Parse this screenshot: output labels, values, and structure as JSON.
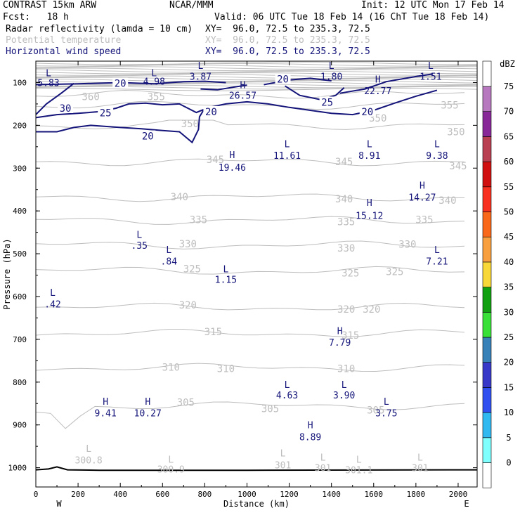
{
  "header": {
    "title": "CONTRAST 15km ARW",
    "center": "NCAR/MMM",
    "init": "Init: 12 UTC Mon 17 Feb 14",
    "fcst": "Fcst:   18 h",
    "valid": "Valid: 06 UTC Tue 18 Feb 14 (16 ChT Tue 18 Feb 14)",
    "field1": "Radar reflectivity (lamda = 10 cm)",
    "field1_xy": "XY=  96.0, 72.5 to 235.3, 72.5",
    "field2": "Potential temperature",
    "field2_xy": "XY=  96.0, 72.5 to 235.3, 72.5",
    "field3": "Horizontal wind speed",
    "field3_xy": "XY=  96.0, 72.5 to 235.3, 72.5"
  },
  "colors": {
    "wind": "#14147a",
    "theta": "#bdbdbd",
    "axis": "#000000"
  },
  "chart_data": {
    "type": "cross-section",
    "xlabel": "Distance (km)",
    "ylabel": "Pressure (hPa)",
    "xlim": [
      0,
      2090
    ],
    "ylim": [
      1045,
      50
    ],
    "xticks": [
      0,
      200,
      400,
      600,
      800,
      1000,
      1200,
      1400,
      1600,
      1800,
      2000
    ],
    "yticks": [
      100,
      200,
      300,
      400,
      500,
      600,
      700,
      800,
      900,
      1000
    ],
    "x_endpoints": {
      "left": "W",
      "right": "E"
    },
    "colorbar": {
      "label": "dBZ",
      "levels": [
        0,
        5,
        10,
        15,
        20,
        25,
        30,
        35,
        40,
        45,
        50,
        55,
        60,
        65,
        70,
        75
      ],
      "colors": [
        "#ffffff",
        "#80ffff",
        "#30b8f0",
        "#3050f0",
        "#3838c8",
        "#3880b8",
        "#38e038",
        "#10a010",
        "#f8d838",
        "#f8a040",
        "#f86818",
        "#f83020",
        "#d01010",
        "#b84050",
        "#882898",
        "#b878c0"
      ]
    },
    "theta_labels": [
      {
        "text": "360",
        "x": 260,
        "p": 133
      },
      {
        "text": "355",
        "x": 570,
        "p": 133
      },
      {
        "text": "355",
        "x": 1960,
        "p": 153
      },
      {
        "text": "350",
        "x": 730,
        "p": 196
      },
      {
        "text": "350",
        "x": 1620,
        "p": 183
      },
      {
        "text": "350",
        "x": 1990,
        "p": 215
      },
      {
        "text": "345",
        "x": 850,
        "p": 280
      },
      {
        "text": "345",
        "x": 1460,
        "p": 285
      },
      {
        "text": "345",
        "x": 2000,
        "p": 295
      },
      {
        "text": "340",
        "x": 680,
        "p": 367
      },
      {
        "text": "340",
        "x": 1460,
        "p": 372
      },
      {
        "text": "340",
        "x": 1950,
        "p": 375
      },
      {
        "text": "335",
        "x": 770,
        "p": 420
      },
      {
        "text": "335",
        "x": 1470,
        "p": 425
      },
      {
        "text": "335",
        "x": 1840,
        "p": 420
      },
      {
        "text": "330",
        "x": 720,
        "p": 477
      },
      {
        "text": "330",
        "x": 1470,
        "p": 487
      },
      {
        "text": "330",
        "x": 1760,
        "p": 478
      },
      {
        "text": "325",
        "x": 740,
        "p": 535
      },
      {
        "text": "325",
        "x": 1490,
        "p": 545
      },
      {
        "text": "325",
        "x": 1700,
        "p": 542
      },
      {
        "text": "320",
        "x": 720,
        "p": 620
      },
      {
        "text": "320",
        "x": 1470,
        "p": 630
      },
      {
        "text": "320",
        "x": 1590,
        "p": 630
      },
      {
        "text": "315",
        "x": 840,
        "p": 682
      },
      {
        "text": "315",
        "x": 1490,
        "p": 690
      },
      {
        "text": "310",
        "x": 640,
        "p": 765
      },
      {
        "text": "310",
        "x": 900,
        "p": 768
      },
      {
        "text": "310",
        "x": 1470,
        "p": 768
      },
      {
        "text": "305",
        "x": 710,
        "p": 847
      },
      {
        "text": "305",
        "x": 1110,
        "p": 862
      },
      {
        "text": "305",
        "x": 1610,
        "p": 865
      }
    ],
    "theta_lines": [
      305,
      310,
      315,
      320,
      325,
      330,
      335,
      340,
      345,
      350,
      355,
      360
    ],
    "wind_labels": [
      {
        "text": "20",
        "x": 400,
        "p": 102
      },
      {
        "text": "20",
        "x": 1170,
        "p": 92
      },
      {
        "text": "20",
        "x": 830,
        "p": 168
      },
      {
        "text": "20",
        "x": 1570,
        "p": 168
      },
      {
        "text": "20",
        "x": 530,
        "p": 225
      },
      {
        "text": "25",
        "x": 330,
        "p": 171
      },
      {
        "text": "25",
        "x": 1380,
        "p": 146
      },
      {
        "text": "30",
        "x": 140,
        "p": 160
      }
    ],
    "wind_hl": [
      {
        "sym": "L",
        "val": "5.83",
        "x": 60,
        "p": 77,
        "vp": 100
      },
      {
        "sym": "L",
        "val": "4.98",
        "x": 560,
        "p": 77,
        "vp": 97
      },
      {
        "sym": "L",
        "val": "3.87",
        "x": 780,
        "p": 60,
        "vp": 85
      },
      {
        "sym": "H",
        "val": "26.57",
        "x": 980,
        "p": 105,
        "vp": 130
      },
      {
        "sym": "L",
        "val": "1.80",
        "x": 1400,
        "p": 60,
        "vp": 85
      },
      {
        "sym": "H",
        "val": "22.77",
        "x": 1620,
        "p": 92,
        "vp": 119
      },
      {
        "sym": "L",
        "val": "1.51",
        "x": 1870,
        "p": 60,
        "vp": 85
      },
      {
        "sym": "H",
        "val": "19.46",
        "x": 930,
        "p": 268,
        "vp": 298
      },
      {
        "sym": "L",
        "val": "11.61",
        "x": 1190,
        "p": 243,
        "vp": 270
      },
      {
        "sym": "L",
        "val": "8.91",
        "x": 1580,
        "p": 243,
        "vp": 270
      },
      {
        "sym": "L",
        "val": "9.38",
        "x": 1900,
        "p": 243,
        "vp": 270
      },
      {
        "sym": "H",
        "val": "14.27",
        "x": 1830,
        "p": 340,
        "vp": 368
      },
      {
        "sym": "H",
        "val": "15.12",
        "x": 1580,
        "p": 380,
        "vp": 410
      },
      {
        "sym": "L",
        "val": ".35",
        "x": 490,
        "p": 455,
        "vp": 480
      },
      {
        "sym": "L",
        "val": ".84",
        "x": 630,
        "p": 490,
        "vp": 517
      },
      {
        "sym": "L",
        "val": "1.15",
        "x": 900,
        "p": 535,
        "vp": 560
      },
      {
        "sym": "L",
        "val": "7.21",
        "x": 1900,
        "p": 490,
        "vp": 517
      },
      {
        "sym": "L",
        "val": ".42",
        "x": 80,
        "p": 590,
        "vp": 617
      },
      {
        "sym": "H",
        "val": "7.79",
        "x": 1440,
        "p": 680,
        "vp": 707
      },
      {
        "sym": "L",
        "val": "4.63",
        "x": 1190,
        "p": 805,
        "vp": 830
      },
      {
        "sym": "L",
        "val": "3.90",
        "x": 1460,
        "p": 805,
        "vp": 830
      },
      {
        "sym": "L",
        "val": "3.75",
        "x": 1660,
        "p": 845,
        "vp": 872
      },
      {
        "sym": "H",
        "val": "9.41",
        "x": 330,
        "p": 845,
        "vp": 872
      },
      {
        "sym": "H",
        "val": "10.27",
        "x": 530,
        "p": 845,
        "vp": 872
      },
      {
        "sym": "H",
        "val": "8.89",
        "x": 1300,
        "p": 900,
        "vp": 928
      }
    ],
    "theta_hl": [
      {
        "sym": "L",
        "val": "300.8",
        "x": 250,
        "p": 955,
        "vp": 982
      },
      {
        "sym": "L",
        "val": "300.9",
        "x": 640,
        "p": 980,
        "vp": 1003
      },
      {
        "sym": "L",
        "val": "301",
        "x": 1170,
        "p": 965,
        "vp": 993
      },
      {
        "sym": "L",
        "val": "301",
        "x": 1360,
        "p": 975,
        "vp": 1000
      },
      {
        "sym": "L",
        "val": "301.1",
        "x": 1530,
        "p": 980,
        "vp": 1005
      },
      {
        "sym": "L",
        "val": "301",
        "x": 1820,
        "p": 975,
        "vp": 1000
      }
    ]
  }
}
